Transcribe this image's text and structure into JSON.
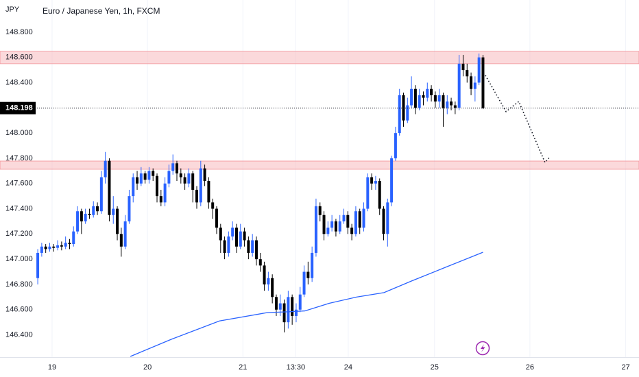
{
  "chart_data": {
    "type": "candlestick",
    "title": "Euro / Japanese Yen, 1h, FXCM",
    "currency": "JPY",
    "up_color": "#2962ff",
    "down_color": "#000000",
    "grid": true,
    "ylim": [
      146.229,
      149.055
    ],
    "yticks": [
      {
        "value": 146.4,
        "label": "146.400"
      },
      {
        "value": 146.6,
        "label": "146.600"
      },
      {
        "value": 146.8,
        "label": "146.800"
      },
      {
        "value": 147.0,
        "label": "147.000"
      },
      {
        "value": 147.2,
        "label": "147.200"
      },
      {
        "value": 147.4,
        "label": "147.400"
      },
      {
        "value": 147.6,
        "label": "147.600"
      },
      {
        "value": 147.8,
        "label": "147.800"
      },
      {
        "value": 148.0,
        "label": "148.000"
      },
      {
        "value": 148.4,
        "label": "148.400"
      },
      {
        "value": 148.6,
        "label": "148.600"
      },
      {
        "value": 148.8,
        "label": "148.800"
      }
    ],
    "xlim": [
      -9.5,
      150.9
    ],
    "xticks": [
      {
        "value": 3.6,
        "label": "19"
      },
      {
        "value": 27.6,
        "label": "20"
      },
      {
        "value": 51.6,
        "label": "21"
      },
      {
        "value": 64.9,
        "label": "13:30"
      },
      {
        "value": 78.1,
        "label": "24"
      },
      {
        "value": 99.8,
        "label": "25"
      },
      {
        "value": 123.8,
        "label": "26"
      },
      {
        "value": 147.9,
        "label": "27"
      }
    ],
    "open": [
      146.85,
      147.05,
      147.1,
      147.08,
      147.1,
      147.09,
      147.11,
      147.1,
      147.13,
      147.12,
      147.22,
      147.38,
      147.3,
      147.36,
      147.35,
      147.42,
      147.38,
      147.65,
      147.78,
      147.35,
      147.4,
      147.2,
      147.1,
      147.3,
      147.5,
      147.65,
      147.6,
      147.68,
      147.63,
      147.7,
      147.66,
      147.5,
      147.45,
      147.6,
      147.7,
      147.76,
      147.68,
      147.65,
      147.6,
      147.68,
      147.55,
      147.45,
      147.72,
      147.62,
      147.45,
      147.4,
      147.25,
      147.15,
      147.05,
      147.18,
      147.25,
      147.1,
      147.22,
      147.15,
      147.05,
      147.15,
      147.0,
      146.95,
      146.8,
      146.85,
      146.7,
      146.6,
      146.65,
      146.5,
      146.7,
      146.55,
      146.6,
      146.72,
      146.9,
      146.85,
      147.05,
      147.42,
      147.35,
      147.2,
      147.25,
      147.3,
      147.22,
      147.3,
      147.35,
      147.25,
      147.2,
      147.38,
      147.25,
      147.4,
      147.65,
      147.6,
      147.62,
      147.4,
      147.2,
      147.45,
      147.8,
      148.0,
      148.3,
      148.1,
      148.22,
      148.35,
      148.2,
      148.3,
      148.28,
      148.35,
      148.3,
      148.25,
      148.3,
      148.2,
      148.25,
      148.22,
      148.2,
      148.55,
      148.5,
      148.45,
      148.35,
      148.4,
      148.6
    ],
    "high": [
      147.08,
      147.13,
      147.12,
      147.13,
      147.12,
      147.15,
      147.14,
      147.18,
      147.16,
      147.26,
      147.42,
      147.4,
      147.4,
      147.4,
      147.46,
      147.45,
      147.7,
      147.85,
      147.8,
      147.5,
      147.42,
      147.25,
      147.35,
      147.55,
      147.68,
      147.7,
      147.73,
      147.7,
      147.73,
      147.72,
      147.68,
      147.55,
      147.65,
      147.75,
      147.83,
      147.78,
      147.72,
      147.68,
      147.72,
      147.7,
      147.58,
      147.78,
      147.75,
      147.65,
      147.48,
      147.42,
      147.28,
      147.18,
      147.22,
      147.3,
      147.28,
      147.28,
      147.25,
      147.18,
      147.2,
      147.18,
      147.05,
      146.98,
      146.9,
      146.88,
      146.72,
      146.72,
      146.68,
      146.75,
      146.72,
      146.65,
      146.78,
      146.95,
      146.98,
      147.1,
      147.48,
      147.45,
      147.38,
      147.3,
      147.35,
      147.32,
      147.35,
      147.4,
      147.38,
      147.28,
      147.42,
      147.4,
      147.45,
      147.68,
      147.68,
      147.66,
      147.64,
      147.42,
      147.48,
      147.82,
      148.05,
      148.35,
      148.32,
      148.28,
      148.45,
      148.38,
      148.35,
      148.33,
      148.4,
      148.38,
      148.33,
      148.35,
      148.32,
      148.3,
      148.28,
      148.25,
      148.62,
      148.62,
      148.55,
      148.48,
      148.45,
      148.63,
      148.62
    ],
    "low": [
      146.8,
      147.02,
      147.05,
      147.06,
      147.06,
      147.07,
      147.07,
      147.08,
      147.08,
      147.1,
      147.2,
      147.2,
      147.28,
      147.32,
      147.33,
      147.35,
      147.36,
      147.6,
      147.3,
      147.28,
      147.15,
      147.02,
      147.08,
      147.28,
      147.45,
      147.55,
      147.58,
      147.6,
      147.6,
      147.62,
      147.45,
      147.42,
      147.42,
      147.57,
      147.67,
      147.62,
      147.6,
      147.55,
      147.57,
      147.45,
      147.4,
      147.42,
      147.58,
      147.4,
      147.32,
      147.2,
      147.05,
      147.0,
      147.02,
      147.15,
      147.05,
      147.08,
      147.1,
      147.0,
      147.02,
      146.95,
      146.9,
      146.75,
      146.75,
      146.65,
      146.55,
      146.55,
      146.42,
      146.45,
      146.48,
      146.5,
      146.58,
      146.7,
      146.8,
      146.82,
      147.02,
      147.3,
      147.15,
      147.18,
      147.22,
      147.18,
      147.2,
      147.28,
      147.2,
      147.15,
      147.18,
      147.2,
      147.22,
      147.38,
      147.55,
      147.55,
      147.35,
      147.15,
      147.1,
      147.42,
      147.78,
      147.98,
      148.05,
      148.08,
      148.2,
      148.15,
      148.18,
      148.22,
      148.25,
      148.25,
      148.2,
      148.2,
      148.05,
      148.15,
      148.18,
      148.15,
      148.18,
      148.45,
      148.4,
      148.3,
      148.25,
      148.38,
      148.19
    ],
    "close": [
      147.05,
      147.1,
      147.08,
      147.1,
      147.09,
      147.11,
      147.1,
      147.13,
      147.12,
      147.22,
      147.38,
      147.3,
      147.36,
      147.35,
      147.42,
      147.38,
      147.65,
      147.78,
      147.35,
      147.4,
      147.2,
      147.1,
      147.3,
      147.5,
      147.65,
      147.6,
      147.68,
      147.63,
      147.7,
      147.66,
      147.5,
      147.45,
      147.6,
      147.7,
      147.76,
      147.68,
      147.65,
      147.6,
      147.68,
      147.55,
      147.45,
      147.72,
      147.62,
      147.45,
      147.4,
      147.25,
      147.15,
      147.05,
      147.18,
      147.25,
      147.1,
      147.22,
      147.15,
      147.05,
      147.15,
      147.0,
      146.95,
      146.8,
      146.85,
      146.7,
      146.6,
      146.65,
      146.5,
      146.7,
      146.55,
      146.6,
      146.72,
      146.9,
      146.85,
      147.05,
      147.42,
      147.35,
      147.2,
      147.25,
      147.3,
      147.22,
      147.3,
      147.35,
      147.25,
      147.2,
      147.38,
      147.25,
      147.4,
      147.65,
      147.6,
      147.62,
      147.4,
      147.2,
      147.45,
      147.8,
      148.0,
      148.3,
      148.1,
      148.22,
      148.35,
      148.2,
      148.3,
      148.28,
      148.35,
      148.3,
      148.25,
      148.3,
      148.2,
      148.25,
      148.22,
      148.2,
      148.55,
      148.5,
      148.45,
      148.35,
      148.4,
      148.6,
      148.198
    ],
    "moving_average": {
      "color": "#2962ff",
      "x": [
        23.3,
        33.6,
        45.7,
        57.8,
        63.0,
        67.2,
        73.3,
        80.2,
        87.1,
        94.0,
        102.6,
        112
      ],
      "values": [
        146.229,
        146.365,
        146.51,
        146.577,
        146.583,
        146.59,
        146.65,
        146.7,
        146.735,
        146.827,
        146.936,
        147.055
      ]
    },
    "zones": [
      {
        "from": 148.55,
        "to": 148.648,
        "color": "#f8b9bd"
      },
      {
        "from": 147.713,
        "to": 147.778,
        "color": "#f8b9bd"
      }
    ],
    "projection": {
      "color": "#131722",
      "x": [
        112.6,
        117.8,
        121.0,
        127.6,
        128.8
      ],
      "values": [
        148.458,
        148.17,
        148.25,
        147.767,
        147.81
      ]
    }
  }
}
